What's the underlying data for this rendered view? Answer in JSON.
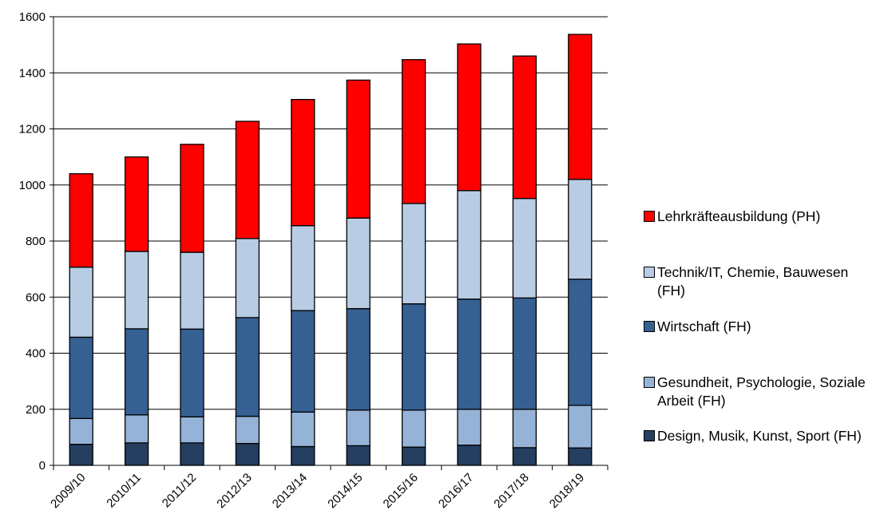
{
  "chart_data": {
    "type": "bar",
    "stacked": true,
    "categories": [
      "2009/10",
      "2010/11",
      "2011/12",
      "2012/13",
      "2013/14",
      "2014/15",
      "2015/16",
      "2016/17",
      "2017/18",
      "2018/19"
    ],
    "series": [
      {
        "name": "Design, Musik, Kunst, Sport (FH)",
        "color": "#243f60",
        "values": [
          75,
          80,
          80,
          78,
          67,
          70,
          65,
          72,
          63,
          62
        ]
      },
      {
        "name": "Gesundheit, Psychologie, Soziale Arbeit (FH)",
        "color": "#95b3d7",
        "values": [
          92,
          100,
          93,
          97,
          123,
          127,
          132,
          128,
          137,
          152
        ]
      },
      {
        "name": "Wirtschaft (FH)",
        "color": "#366092",
        "values": [
          290,
          307,
          313,
          352,
          362,
          362,
          379,
          393,
          397,
          450
        ]
      },
      {
        "name": "Technik/IT, Chemie, Bauwesen (FH)",
        "color": "#b8cce4",
        "values": [
          250,
          276,
          274,
          282,
          303,
          323,
          358,
          387,
          355,
          356
        ]
      },
      {
        "name": "Lehrkräfteausbildung (PH)",
        "color": "#ff0000",
        "values": [
          333,
          337,
          385,
          418,
          450,
          492,
          513,
          523,
          508,
          517
        ]
      }
    ],
    "ylim": [
      0,
      1600
    ],
    "yticks": [
      0,
      200,
      400,
      600,
      800,
      1000,
      1200,
      1400,
      1600
    ],
    "ytick_labels": [
      "0",
      "200",
      "400",
      "600",
      "800",
      "1000",
      "1200",
      "1400",
      "1600"
    ],
    "grid": true,
    "legend_position": "right",
    "legend_order": [
      4,
      3,
      2,
      1,
      0
    ],
    "title": "",
    "xlabel": "",
    "ylabel": ""
  }
}
